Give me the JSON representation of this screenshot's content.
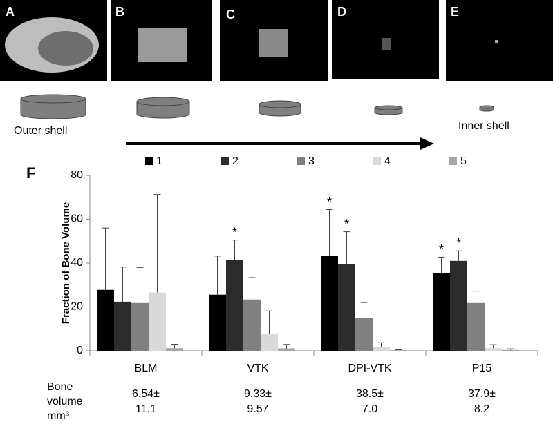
{
  "panels": [
    "A",
    "B",
    "C",
    "D",
    "E"
  ],
  "shell_labels": {
    "outer": "Outer shell",
    "inner": "Inner shell"
  },
  "chart_data": {
    "type": "bar",
    "panel_label": "F",
    "y_label": "Fraction of Bone Volume",
    "categories": [
      "BLM",
      "VTK",
      "DPI-VTK",
      "P15"
    ],
    "ylim": [
      0,
      80
    ],
    "yticks": [
      0,
      20,
      40,
      60,
      80
    ],
    "grid": false,
    "series": [
      {
        "name": "1",
        "color": "#000000",
        "values": [
          27.8,
          25.6,
          43.3,
          35.6
        ],
        "errors": [
          28.2,
          17.6,
          21.1,
          7.1
        ],
        "markers": [
          null,
          null,
          "*",
          "*"
        ]
      },
      {
        "name": "2",
        "color": "#2b2b2b",
        "values": [
          22.4,
          41.3,
          39.4,
          41.0
        ],
        "errors": [
          15.8,
          9.2,
          14.9,
          4.6
        ],
        "markers": [
          null,
          "*",
          "*",
          "*"
        ]
      },
      {
        "name": "3",
        "color": "#808080",
        "values": [
          21.8,
          23.4,
          15.1,
          21.8
        ],
        "errors": [
          16.2,
          10.0,
          6.9,
          5.4
        ],
        "markers": [
          null,
          null,
          null,
          null
        ]
      },
      {
        "name": "4",
        "color": "#d9d9d9",
        "values": [
          26.6,
          7.8,
          1.9,
          1.2
        ],
        "errors": [
          44.7,
          10.4,
          1.8,
          1.6
        ],
        "markers": [
          null,
          null,
          null,
          null
        ]
      },
      {
        "name": "5",
        "color": "#a6a6a6",
        "values": [
          1.2,
          1.1,
          0.3,
          0.4
        ],
        "errors": [
          1.8,
          1.8,
          0.2,
          0.5
        ],
        "markers": [
          null,
          null,
          null,
          null
        ]
      }
    ],
    "bone_volume": {
      "label": [
        "Bone",
        "volume",
        "mm³"
      ],
      "values": [
        [
          "6.54±",
          "11.1"
        ],
        [
          "9.33±",
          "9.57"
        ],
        [
          "38.5±",
          "7.0"
        ],
        [
          "37.9±",
          "8.2"
        ]
      ]
    }
  }
}
